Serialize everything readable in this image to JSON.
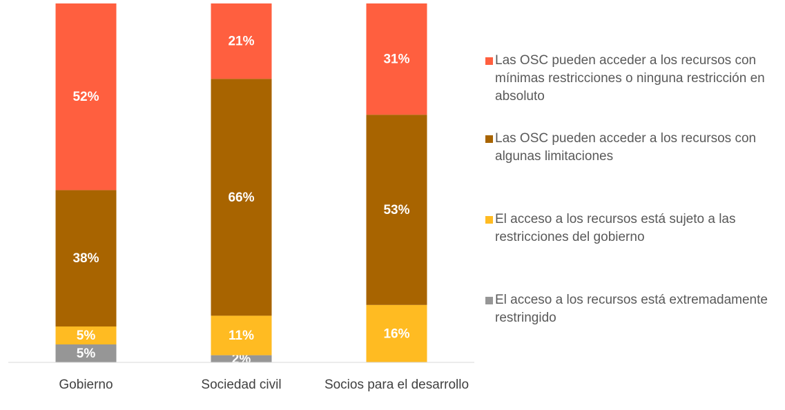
{
  "chart_data": {
    "type": "stacked_bar",
    "categories": [
      "Gobierno",
      "Sociedad civil",
      "Socios para el desarrollo"
    ],
    "ylim": [
      0,
      100
    ],
    "series": [
      {
        "name": "El acceso a los recursos está extremadamente restringido",
        "color": "#969696",
        "values": [
          5,
          2,
          0
        ],
        "value_labels": [
          "5%",
          "2%",
          null
        ]
      },
      {
        "name": "El acceso a los recursos está sujeto a las restricciones del gobierno",
        "color": "#ffbb22",
        "values": [
          5,
          11,
          16
        ],
        "value_labels": [
          "5%",
          "11%",
          "16%"
        ]
      },
      {
        "name": "Las OSC pueden acceder a los recursos con algunas limitaciones",
        "color": "#a86400",
        "values": [
          38,
          66,
          53
        ],
        "value_labels": [
          "38%",
          "66%",
          "53%"
        ]
      },
      {
        "name": "Las OSC pueden acceder a los recursos con mínimas restricciones o ninguna restricción en absoluto",
        "color": "#ff5f3f",
        "values": [
          52,
          21,
          31
        ],
        "value_labels": [
          "52%",
          "21%",
          "31%"
        ]
      }
    ]
  }
}
